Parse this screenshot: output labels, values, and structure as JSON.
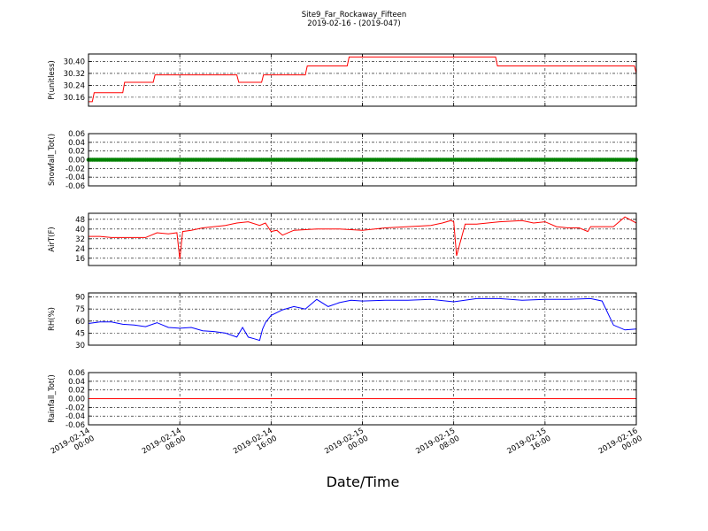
{
  "title": "Site9_Far_Rockaway_Fifteen",
  "subtitle": "2019-02-16 - (2019-047)",
  "xlabel": "Date/Time",
  "x_range": [
    "2019-02-14 00:00",
    "2019-02-16 00:00"
  ],
  "x_ticks": [
    {
      "value": "2019-02-14 00:00",
      "line1": "2019-02-14",
      "line2": "00:00"
    },
    {
      "value": "2019-02-14 08:00",
      "line1": "2019-02-14",
      "line2": "08:00"
    },
    {
      "value": "2019-02-14 16:00",
      "line1": "2019-02-14",
      "line2": "16:00"
    },
    {
      "value": "2019-02-15 00:00",
      "line1": "2019-02-15",
      "line2": "00:00"
    },
    {
      "value": "2019-02-15 08:00",
      "line1": "2019-02-15",
      "line2": "08:00"
    },
    {
      "value": "2019-02-15 16:00",
      "line1": "2019-02-15",
      "line2": "16:00"
    },
    {
      "value": "2019-02-16 00:00",
      "line1": "2019-02-16",
      "line2": "00:00"
    }
  ],
  "chart_data": [
    {
      "type": "line",
      "ylabel": "P(unitless)",
      "ylim": [
        30.1,
        30.45
      ],
      "yticks": [
        "30.16",
        "30.24",
        "30.32",
        "30.40"
      ],
      "grid": true,
      "color": "#ff0000",
      "marker": false,
      "x": [
        "2019-02-14 00:00",
        "2019-02-14 00:20",
        "2019-02-14 00:30",
        "2019-02-14 03:00",
        "2019-02-14 03:10",
        "2019-02-14 05:40",
        "2019-02-14 05:50",
        "2019-02-14 13:00",
        "2019-02-14 13:10",
        "2019-02-14 15:10",
        "2019-02-14 15:20",
        "2019-02-14 19:00",
        "2019-02-14 19:10",
        "2019-02-14 22:40",
        "2019-02-14 22:50",
        "2019-02-15 11:40",
        "2019-02-15 11:50",
        "2019-02-15 23:50",
        "2019-02-16 00:00"
      ],
      "y": [
        30.13,
        30.13,
        30.19,
        30.19,
        30.26,
        30.26,
        30.31,
        30.31,
        30.26,
        30.26,
        30.31,
        30.31,
        30.37,
        30.37,
        30.43,
        30.43,
        30.37,
        30.37,
        30.32
      ]
    },
    {
      "type": "line",
      "ylabel": "Snowfall_Tot()",
      "ylim": [
        -0.06,
        0.06
      ],
      "yticks": [
        "-0.06",
        "-0.04",
        "-0.02",
        "0.00",
        "0.02",
        "0.04",
        "0.06"
      ],
      "grid": true,
      "color": "#008000",
      "marker": true,
      "x": [
        "2019-02-14 00:00",
        "2019-02-16 00:00"
      ],
      "y": [
        0.0,
        0.0
      ]
    },
    {
      "type": "line",
      "ylabel": "AirT(F)",
      "ylim": [
        10,
        53
      ],
      "yticks": [
        "16",
        "24",
        "32",
        "40",
        "48"
      ],
      "grid": true,
      "color": "#ff0000",
      "marker": false,
      "x": [
        "2019-02-14 00:00",
        "2019-02-14 01:00",
        "2019-02-14 02:00",
        "2019-02-14 04:00",
        "2019-02-14 05:00",
        "2019-02-14 06:00",
        "2019-02-14 07:00",
        "2019-02-14 07:45",
        "2019-02-14 08:00",
        "2019-02-14 08:15",
        "2019-02-14 09:00",
        "2019-02-14 10:00",
        "2019-02-14 11:00",
        "2019-02-14 12:00",
        "2019-02-14 13:00",
        "2019-02-14 14:00",
        "2019-02-14 15:00",
        "2019-02-14 15:30",
        "2019-02-14 16:00",
        "2019-02-14 16:30",
        "2019-02-14 17:00",
        "2019-02-14 18:00",
        "2019-02-14 20:00",
        "2019-02-14 22:00",
        "2019-02-15 00:00",
        "2019-02-15 02:00",
        "2019-02-15 04:00",
        "2019-02-15 06:00",
        "2019-02-15 07:00",
        "2019-02-15 07:45",
        "2019-02-15 08:00",
        "2019-02-15 08:15",
        "2019-02-15 09:00",
        "2019-02-15 10:00",
        "2019-02-15 12:00",
        "2019-02-15 14:00",
        "2019-02-15 15:00",
        "2019-02-15 16:00",
        "2019-02-15 17:00",
        "2019-02-15 18:00",
        "2019-02-15 19:00",
        "2019-02-15 19:45",
        "2019-02-15 20:00",
        "2019-02-15 21:00",
        "2019-02-15 22:00",
        "2019-02-15 23:00",
        "2019-02-16 00:00"
      ],
      "y": [
        34,
        34,
        33,
        33,
        33,
        37,
        36,
        37,
        15,
        38,
        39,
        41,
        42,
        43,
        45,
        46,
        43,
        45,
        38,
        39,
        35,
        39,
        40,
        40,
        39,
        41,
        42,
        43,
        45,
        47,
        46,
        18,
        44,
        44,
        46,
        47,
        45,
        46,
        42,
        41,
        41,
        38,
        42,
        42,
        42,
        50,
        45
      ]
    },
    {
      "type": "line",
      "ylabel": "RH(%)",
      "ylim": [
        30,
        95
      ],
      "yticks": [
        "30",
        "45",
        "60",
        "75",
        "90"
      ],
      "grid": true,
      "color": "#0000ff",
      "marker": false,
      "x": [
        "2019-02-14 00:00",
        "2019-02-14 01:00",
        "2019-02-14 02:00",
        "2019-02-14 03:00",
        "2019-02-14 04:00",
        "2019-02-14 05:00",
        "2019-02-14 06:00",
        "2019-02-14 07:00",
        "2019-02-14 08:00",
        "2019-02-14 09:00",
        "2019-02-14 10:00",
        "2019-02-14 11:00",
        "2019-02-14 12:00",
        "2019-02-14 13:00",
        "2019-02-14 13:30",
        "2019-02-14 14:00",
        "2019-02-14 14:30",
        "2019-02-14 15:00",
        "2019-02-14 15:15",
        "2019-02-14 15:30",
        "2019-02-14 16:00",
        "2019-02-14 17:00",
        "2019-02-14 18:00",
        "2019-02-14 19:00",
        "2019-02-14 20:00",
        "2019-02-14 21:00",
        "2019-02-14 22:00",
        "2019-02-14 23:00",
        "2019-02-15 00:00",
        "2019-02-15 02:00",
        "2019-02-15 04:00",
        "2019-02-15 06:00",
        "2019-02-15 08:00",
        "2019-02-15 10:00",
        "2019-02-15 12:00",
        "2019-02-15 14:00",
        "2019-02-15 16:00",
        "2019-02-15 18:00",
        "2019-02-15 20:00",
        "2019-02-15 21:00",
        "2019-02-15 22:00",
        "2019-02-15 23:00",
        "2019-02-16 00:00"
      ],
      "y": [
        57,
        59,
        59,
        56,
        55,
        53,
        58,
        52,
        51,
        52,
        48,
        47,
        45,
        40,
        52,
        40,
        38,
        36,
        50,
        58,
        67,
        74,
        78,
        75,
        87,
        78,
        83,
        86,
        85,
        86,
        86,
        87,
        84,
        88,
        88,
        86,
        87,
        87,
        88,
        85,
        55,
        49,
        50
      ]
    },
    {
      "type": "line",
      "ylabel": "Rainfall_Tot()",
      "ylim": [
        -0.06,
        0.06
      ],
      "yticks": [
        "-0.06",
        "-0.04",
        "-0.02",
        "0.00",
        "0.02",
        "0.04",
        "0.06"
      ],
      "grid": true,
      "color": "#ff0000",
      "marker": false,
      "x": [
        "2019-02-14 00:00",
        "2019-02-16 00:00"
      ],
      "y": [
        0.0,
        0.0
      ]
    }
  ]
}
